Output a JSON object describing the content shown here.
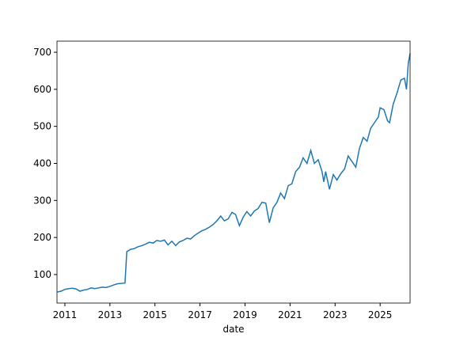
{
  "chart_data": {
    "type": "line",
    "xlabel": "date",
    "x": [
      2010.67,
      2010.83,
      2011.0,
      2011.17,
      2011.33,
      2011.5,
      2011.67,
      2011.83,
      2012.0,
      2012.17,
      2012.33,
      2012.5,
      2012.67,
      2012.83,
      2013.0,
      2013.17,
      2013.33,
      2013.5,
      2013.67,
      2013.75,
      2013.92,
      2014.08,
      2014.25,
      2014.42,
      2014.58,
      2014.75,
      2014.92,
      2015.08,
      2015.25,
      2015.42,
      2015.58,
      2015.75,
      2015.92,
      2016.08,
      2016.25,
      2016.42,
      2016.58,
      2016.75,
      2016.92,
      2017.08,
      2017.25,
      2017.42,
      2017.58,
      2017.75,
      2017.92,
      2018.08,
      2018.25,
      2018.42,
      2018.58,
      2018.75,
      2018.92,
      2019.08,
      2019.25,
      2019.42,
      2019.58,
      2019.75,
      2019.92,
      2020.08,
      2020.25,
      2020.42,
      2020.58,
      2020.75,
      2020.92,
      2021.08,
      2021.25,
      2021.42,
      2021.58,
      2021.75,
      2021.92,
      2022.08,
      2022.25,
      2022.42,
      2022.5,
      2022.58,
      2022.75,
      2022.92,
      2023.08,
      2023.25,
      2023.42,
      2023.58,
      2023.75,
      2023.92,
      2024.08,
      2024.25,
      2024.42,
      2024.58,
      2024.75,
      2024.92,
      2025.0,
      2025.17,
      2025.33,
      2025.42,
      2025.58,
      2025.75,
      2025.92,
      2026.08,
      2026.17,
      2026.25,
      2026.33
    ],
    "series": [
      {
        "color": "#1f77b4",
        "values": [
          53,
          55,
          60,
          62,
          63,
          61,
          55,
          58,
          60,
          64,
          62,
          64,
          66,
          65,
          68,
          72,
          75,
          76,
          77,
          162,
          168,
          170,
          175,
          178,
          182,
          187,
          185,
          192,
          190,
          193,
          180,
          190,
          178,
          188,
          192,
          198,
          196,
          205,
          212,
          218,
          222,
          228,
          235,
          245,
          258,
          245,
          250,
          268,
          262,
          232,
          255,
          270,
          258,
          272,
          278,
          295,
          293,
          240,
          280,
          295,
          320,
          305,
          340,
          345,
          378,
          390,
          415,
          400,
          435,
          400,
          410,
          378,
          350,
          378,
          330,
          370,
          355,
          372,
          385,
          420,
          405,
          390,
          440,
          470,
          460,
          495,
          510,
          525,
          550,
          545,
          515,
          510,
          560,
          590,
          625,
          630,
          600,
          670,
          697
        ]
      }
    ],
    "xlim": [
      2010.65,
      2026.33
    ],
    "xticks": [
      2011,
      2013,
      2015,
      2017,
      2019,
      2021,
      2023,
      2025
    ],
    "ylim": [
      23,
      730
    ],
    "yticks": [
      100,
      200,
      300,
      400,
      500,
      600,
      700
    ]
  }
}
